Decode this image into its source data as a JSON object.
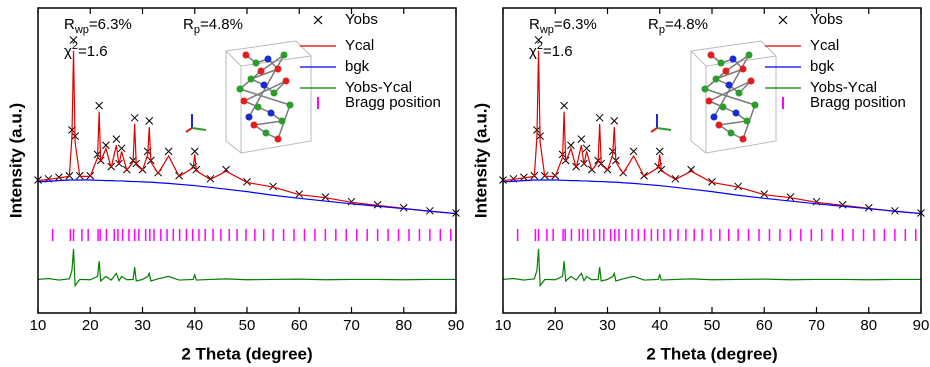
{
  "chart_data": [
    {
      "type": "line",
      "xlabel": "2 Theta (degree)",
      "ylabel": "Intensity (a.u.)",
      "xlim": [
        10,
        90
      ],
      "xticks": [
        10,
        20,
        30,
        40,
        50,
        60,
        70,
        80,
        90
      ],
      "ylim": [
        0,
        100
      ],
      "annotations": [
        {
          "text": "R",
          "sub": "wp",
          "after": "=6.3%"
        },
        {
          "text": "R",
          "sub": "p",
          "after": "=4.8%"
        },
        {
          "text": "χ",
          "sup": "2",
          "after": "=1.6"
        }
      ],
      "x": [
        10,
        12,
        14,
        16,
        16.5,
        16.8,
        17.1,
        18,
        20,
        21.4,
        21.7,
        22,
        23,
        24,
        25,
        25.5,
        26,
        27,
        28.2,
        28.5,
        28.8,
        30,
        31,
        31.3,
        31.6,
        33,
        35,
        37,
        39.7,
        40,
        40.3,
        43,
        46,
        50,
        55,
        60,
        65,
        70,
        75,
        80,
        85,
        90
      ],
      "series": [
        {
          "name": "Yobs",
          "color": "#000000",
          "marker": "x",
          "values": [
            43.6,
            44,
            44.5,
            45,
            60,
            89.5,
            58,
            45,
            45,
            52,
            68,
            50,
            55,
            48,
            57,
            49,
            54,
            47,
            50,
            64,
            49,
            47,
            53,
            63,
            50,
            46,
            53,
            45,
            48,
            53,
            47,
            44,
            47,
            43,
            41.5,
            39,
            38,
            36.5,
            35.5,
            34.5,
            33.5,
            32.8
          ]
        },
        {
          "name": "Ycal",
          "color": "#e00000",
          "values": [
            43.4,
            43.8,
            44.3,
            44.8,
            58,
            86,
            56,
            44.8,
            44.8,
            51,
            66,
            49.5,
            54,
            47.6,
            55,
            48.6,
            53,
            46.8,
            49.5,
            62,
            48.6,
            46.8,
            52,
            61,
            49.5,
            45.8,
            51.5,
            44.8,
            47.6,
            52,
            46.6,
            43.8,
            46.5,
            42.8,
            41.3,
            38.8,
            37.8,
            36.3,
            35.3,
            34.3,
            33.3,
            32.6
          ]
        },
        {
          "name": "bgk",
          "color": "#0000ff",
          "values": [
            43,
            43.2,
            43.4,
            43.6,
            43.6,
            43.6,
            43.6,
            43.6,
            43.6,
            43.5,
            43.5,
            43.5,
            43.4,
            43.4,
            43.3,
            43.3,
            43.3,
            43.2,
            43.1,
            43.1,
            43.1,
            43,
            42.9,
            42.9,
            42.9,
            42.7,
            42.5,
            42.2,
            41.8,
            41.8,
            41.7,
            41.2,
            40.6,
            39.8,
            38.6,
            37.6,
            36.7,
            35.8,
            35,
            34.2,
            33.4,
            32.6
          ]
        },
        {
          "name": "Yobs-Ycal",
          "color": "#008000",
          "values": [
            11,
            11.3,
            10.8,
            11.2,
            14,
            21,
            9,
            11,
            10.9,
            12,
            17,
            10.5,
            12,
            10.8,
            13,
            10.6,
            12,
            10.9,
            11,
            15,
            10.5,
            11,
            12,
            13,
            10.5,
            11.2,
            12,
            10.8,
            11,
            12.5,
            10.8,
            11,
            11.2,
            10.9,
            11,
            11.1,
            10.9,
            11,
            11,
            10.9,
            11,
            11
          ]
        },
        {
          "name": "Bragg position",
          "color": "#ff00ff",
          "positions": [
            12.8,
            16.2,
            16.8,
            18.4,
            19.6,
            21.5,
            21.9,
            23.1,
            24.6,
            25.3,
            26.2,
            27.4,
            28.5,
            29.3,
            30.6,
            31.4,
            32.2,
            33.5,
            34.7,
            35.9,
            37.1,
            38.4,
            39.6,
            40.8,
            42,
            43.5,
            45,
            46.6,
            48.1,
            49.8,
            51.5,
            53.2,
            55,
            57,
            59,
            61,
            63,
            65,
            67,
            69,
            71,
            73,
            75,
            77,
            79,
            81,
            83,
            85,
            87,
            89
          ]
        }
      ]
    },
    {
      "type": "line",
      "xlabel": "2 Theta (degree)",
      "ylabel": "Intensity (a.u.)",
      "xlim": [
        10,
        90
      ],
      "xticks": [
        10,
        20,
        30,
        40,
        50,
        60,
        70,
        80,
        90
      ],
      "ylim": [
        0,
        100
      ],
      "annotations": [
        {
          "text": "R",
          "sub": "wp",
          "after": "=6.3%"
        },
        {
          "text": "R",
          "sub": "p",
          "after": "=4.8%"
        },
        {
          "text": "χ",
          "sup": "2",
          "after": "=1.6"
        }
      ],
      "x": [
        10,
        12,
        14,
        16,
        16.5,
        16.8,
        17.1,
        18,
        20,
        21.4,
        21.7,
        22,
        23,
        24,
        25,
        25.5,
        26,
        27,
        28.2,
        28.5,
        28.8,
        30,
        31,
        31.3,
        31.6,
        33,
        35,
        37,
        39.7,
        40,
        40.3,
        43,
        46,
        50,
        55,
        60,
        65,
        70,
        75,
        80,
        85,
        90
      ],
      "series": [
        {
          "name": "Yobs",
          "color": "#000000",
          "marker": "x",
          "values": [
            43.6,
            44,
            44.5,
            45,
            60,
            89.5,
            58,
            45,
            45,
            52,
            68,
            50,
            55,
            48,
            57,
            49,
            54,
            47,
            50,
            64,
            49,
            47,
            53,
            63,
            50,
            46,
            53,
            45,
            48,
            53,
            47,
            44,
            47,
            43,
            41.5,
            39,
            38,
            36.5,
            35.5,
            34.5,
            33.5,
            32.8
          ]
        },
        {
          "name": "Ycal",
          "color": "#e00000",
          "values": [
            43.4,
            43.8,
            44.3,
            44.8,
            58,
            86,
            56,
            44.8,
            44.8,
            51,
            66,
            49.5,
            54,
            47.6,
            55,
            48.6,
            53,
            46.8,
            49.5,
            62,
            48.6,
            46.8,
            52,
            61,
            49.5,
            45.8,
            51.5,
            44.8,
            47.6,
            52,
            46.6,
            43.8,
            46.5,
            42.8,
            41.3,
            38.8,
            37.8,
            36.3,
            35.3,
            34.3,
            33.3,
            32.6
          ]
        },
        {
          "name": "bgk",
          "color": "#0000ff",
          "values": [
            43,
            43.2,
            43.4,
            43.6,
            43.6,
            43.6,
            43.6,
            43.6,
            43.6,
            43.5,
            43.5,
            43.5,
            43.4,
            43.4,
            43.3,
            43.3,
            43.3,
            43.2,
            43.1,
            43.1,
            43.1,
            43,
            42.9,
            42.9,
            42.9,
            42.7,
            42.5,
            42.2,
            41.8,
            41.8,
            41.7,
            41.2,
            40.6,
            39.8,
            38.6,
            37.6,
            36.7,
            35.8,
            35,
            34.2,
            33.4,
            32.6
          ]
        },
        {
          "name": "Yobs-Ycal",
          "color": "#008000",
          "values": [
            11,
            11.3,
            10.8,
            11.2,
            14,
            21,
            9,
            11,
            10.9,
            12,
            17,
            10.5,
            12,
            10.8,
            13,
            10.6,
            12,
            10.9,
            11,
            15,
            10.5,
            11,
            12,
            13,
            10.5,
            11.2,
            12,
            10.8,
            11,
            12.5,
            10.8,
            11,
            11.2,
            10.9,
            11,
            11.1,
            10.9,
            11,
            11,
            10.9,
            11,
            11
          ]
        },
        {
          "name": "Bragg position",
          "color": "#ff00ff",
          "positions": [
            12.8,
            16.2,
            16.8,
            18.4,
            19.6,
            21.5,
            21.9,
            23.1,
            24.6,
            25.3,
            26.2,
            27.4,
            28.5,
            29.3,
            30.6,
            31.4,
            32.2,
            33.5,
            34.7,
            35.9,
            37.1,
            38.4,
            39.6,
            40.8,
            42,
            43.5,
            45,
            46.6,
            48.1,
            49.8,
            51.5,
            53.2,
            55,
            57,
            59,
            61,
            63,
            65,
            67,
            69,
            71,
            73,
            75,
            77,
            79,
            81,
            83,
            85,
            87,
            89
          ]
        }
      ]
    }
  ]
}
